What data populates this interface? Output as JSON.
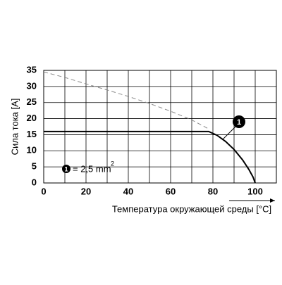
{
  "chart_data": {
    "type": "line",
    "y_label": "Сила тока [A]",
    "x_label": "Температура окружающей среды [°C]",
    "xlim": [
      0,
      110
    ],
    "xticks": [
      0,
      20,
      40,
      60,
      80,
      100
    ],
    "x_grid": [
      0,
      10,
      20,
      30,
      40,
      50,
      60,
      70,
      80,
      90,
      100,
      110
    ],
    "ylim": [
      0,
      35
    ],
    "yticks": [
      0,
      5,
      10,
      15,
      20,
      25,
      30,
      35
    ],
    "grid": true,
    "series": [
      {
        "color": "#888888",
        "dashed": true,
        "x": [
          0,
          10,
          20,
          30,
          40,
          50,
          60,
          70,
          78
        ],
        "values": [
          34.5,
          32.8,
          30.8,
          28.9,
          26.9,
          24.7,
          22.3,
          19.6,
          16.8
        ]
      },
      {
        "color": "#000000",
        "dashed": false,
        "x": [
          0,
          78,
          82,
          86,
          90,
          94,
          97,
          99,
          100
        ],
        "values": [
          16,
          16,
          14.8,
          12.9,
          10.4,
          7.2,
          4.2,
          1.8,
          0
        ]
      }
    ],
    "annotations": {
      "callout": "1",
      "legend_marker": "1",
      "legend_text": "= 2,5 mm",
      "legend_sup": "2"
    }
  }
}
